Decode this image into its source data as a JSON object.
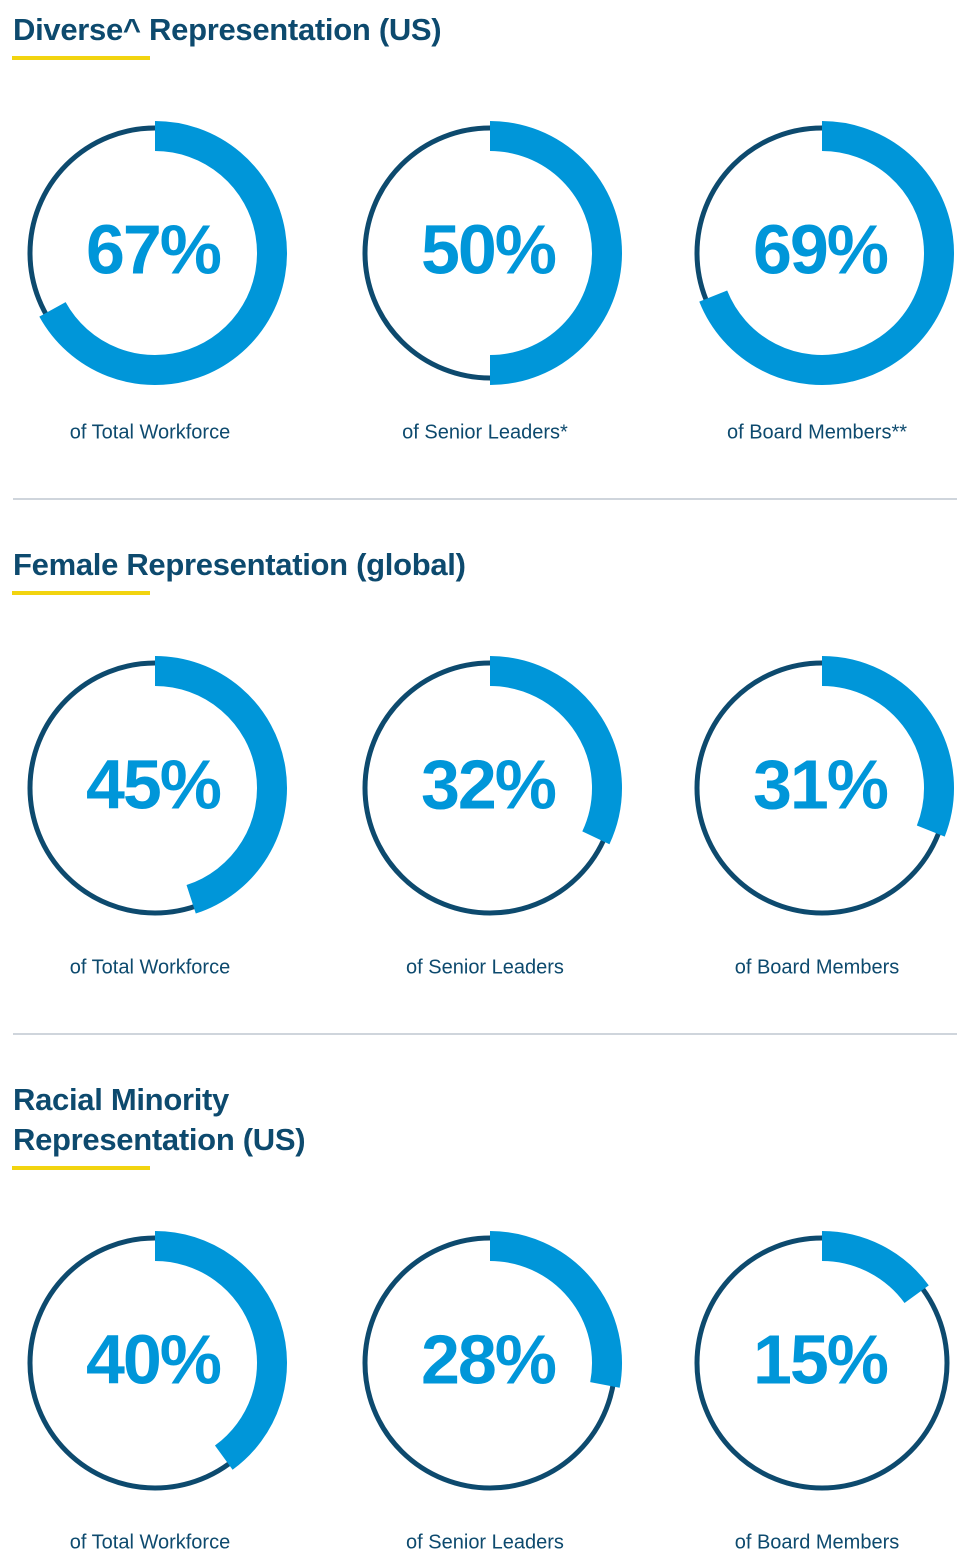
{
  "chart_data": [
    {
      "type": "donut",
      "title": "Diverse^ Representation (US)",
      "categories": [
        "of Total Workforce",
        "of Senior Leaders*",
        "of Board Members**"
      ],
      "values": [
        67,
        50,
        69
      ],
      "value_labels": [
        "67%",
        "50%",
        "69%"
      ],
      "color": "#0096d9",
      "track_color": "#0d4a6e"
    },
    {
      "type": "donut",
      "title": "Female Representation (global)",
      "categories": [
        "of Total Workforce",
        "of Senior Leaders",
        "of Board Members"
      ],
      "values": [
        45,
        32,
        31
      ],
      "value_labels": [
        "45%",
        "32%",
        "31%"
      ],
      "color": "#0096d9",
      "track_color": "#0d4a6e"
    },
    {
      "type": "donut",
      "title": "Racial Minority Representation (US)",
      "categories": [
        "of Total Workforce",
        "of Senior Leaders",
        "of Board Members"
      ],
      "values": [
        40,
        28,
        15
      ],
      "value_labels": [
        "40%",
        "28%",
        "15%"
      ],
      "color": "#0096d9",
      "track_color": "#0d4a6e"
    }
  ]
}
